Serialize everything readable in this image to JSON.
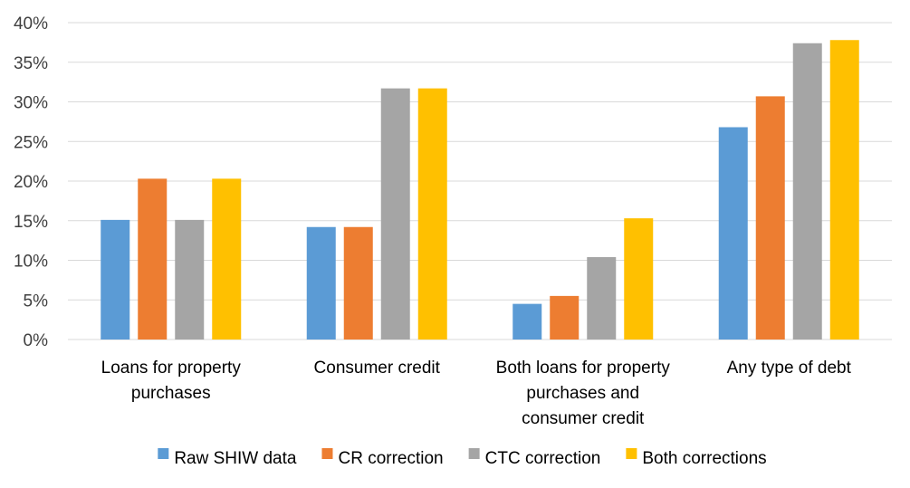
{
  "chart_data": {
    "type": "bar",
    "title": "",
    "xlabel": "",
    "ylabel": "",
    "ylim": [
      0,
      40
    ],
    "y_ticks": [
      "0%",
      "5%",
      "10%",
      "15%",
      "20%",
      "25%",
      "30%",
      "35%",
      "40%"
    ],
    "grid": "horizontal",
    "legend_position": "bottom",
    "categories": [
      [
        "Loans for property",
        "purchases"
      ],
      [
        "Consumer credit"
      ],
      [
        "Both loans for property",
        "purchases and",
        "consumer credit"
      ],
      [
        "Any type of debt"
      ]
    ],
    "series": [
      {
        "name": "Raw SHIW data",
        "color": "#5b9bd5",
        "values": [
          15.1,
          14.2,
          4.5,
          26.8
        ]
      },
      {
        "name": "CR correction",
        "color": "#ed7d31",
        "values": [
          20.3,
          14.2,
          5.5,
          30.7
        ]
      },
      {
        "name": "CTC correction",
        "color": "#a5a5a5",
        "values": [
          15.1,
          31.7,
          10.4,
          37.4
        ]
      },
      {
        "name": "Both corrections",
        "color": "#ffc000",
        "values": [
          20.3,
          31.7,
          15.3,
          37.8
        ]
      }
    ]
  }
}
